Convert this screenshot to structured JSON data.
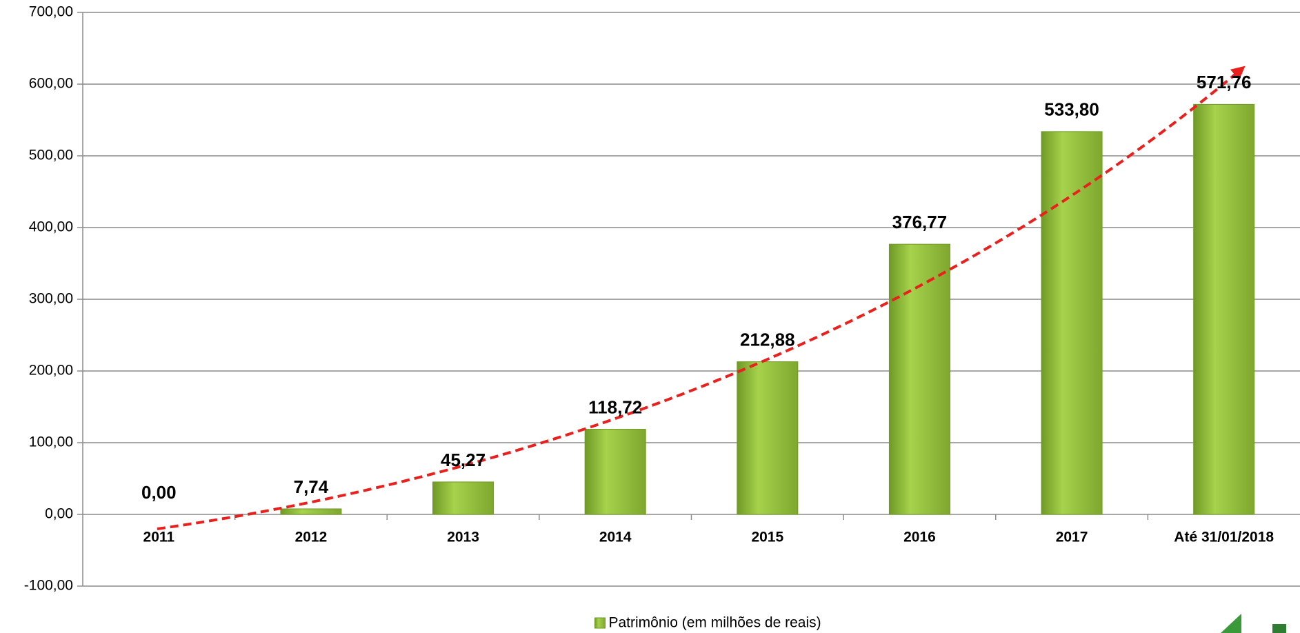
{
  "chart_data": {
    "type": "bar",
    "categories": [
      "2011",
      "2012",
      "2013",
      "2014",
      "2015",
      "2016",
      "2017",
      "Até 31/01/2018"
    ],
    "series": [
      {
        "name": "Patrimônio (em milhões de reais)",
        "color": "#8fbc3a",
        "values": [
          0,
          7.74,
          45.27,
          118.72,
          212.88,
          376.77,
          533.8,
          571.76
        ],
        "value_labels": [
          "0,00",
          "7,74",
          "45,27",
          "118,72",
          "212,88",
          "376,77",
          "533,80",
          "571,76"
        ]
      }
    ],
    "ylim": [
      -100,
      700
    ],
    "yticks": [
      {
        "value": -100,
        "label": "-100,00"
      },
      {
        "value": 0,
        "label": "0,00"
      },
      {
        "value": 100,
        "label": "100,00"
      },
      {
        "value": 200,
        "label": "200,00"
      },
      {
        "value": 300,
        "label": "300,00"
      },
      {
        "value": 400,
        "label": "400,00"
      },
      {
        "value": 500,
        "label": "500,00"
      },
      {
        "value": 600,
        "label": "600,00"
      },
      {
        "value": 700,
        "label": "700,00"
      }
    ],
    "grid": true,
    "legend": "bottom"
  }
}
